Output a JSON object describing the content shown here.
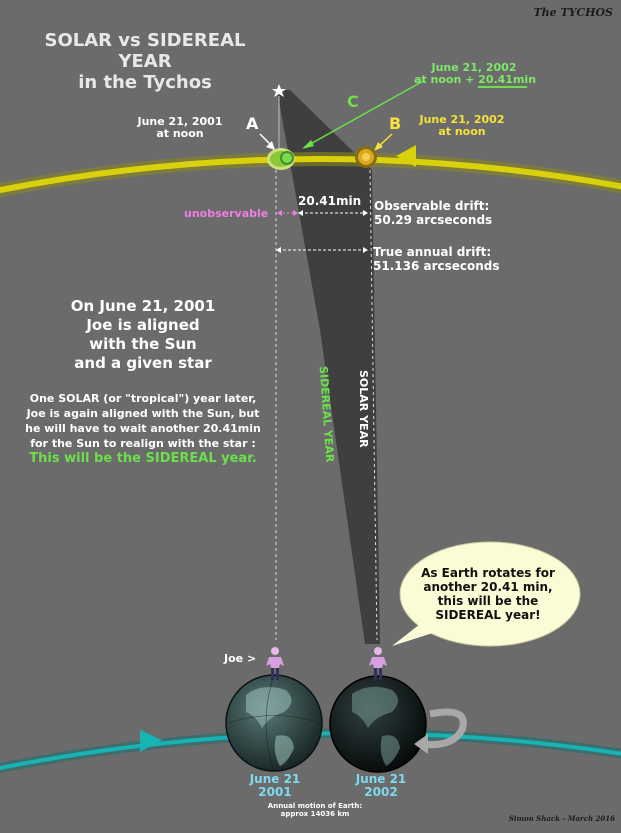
{
  "title": {
    "line1": "SOLAR vs SIDEREAL",
    "line2": "YEAR",
    "line3": "in the Tychos"
  },
  "brand": "The TYCHOS",
  "points": {
    "a": {
      "letter": "A",
      "date": "June 21, 2001",
      "time": "at noon"
    },
    "b": {
      "letter": "B",
      "date": "June 21, 2002",
      "time": "at noon"
    },
    "c": {
      "letter": "C",
      "date": "June 21, 2002",
      "time": "at noon + 20.41min"
    }
  },
  "drift": {
    "gap_label": "20.41min",
    "unobservable": "unobservable",
    "observable_line1": "Observable drift:",
    "observable_line2": "50.29 arcseconds",
    "true_line1": "True annual drift:",
    "true_line2": "51.136 arcseconds"
  },
  "story": {
    "line1": "On June 21, 2001",
    "line2": "Joe is aligned",
    "line3": "with the Sun",
    "line4": "and a given star",
    "p1": "One SOLAR (or \"tropical\") year later,",
    "p2": "Joe is again aligned with the Sun, but",
    "p3": "he will have to wait another 20.41min",
    "p4": "for the Sun to realign with the star :",
    "conclusion": "This will be the SIDEREAL year."
  },
  "beam_labels": {
    "sidereal": "SIDEREAL YEAR",
    "solar": "SOLAR YEAR"
  },
  "bubble": {
    "line1": "As Earth rotates for",
    "line2": "another 20.41 min,",
    "line3": "this will be the",
    "line4": "SIDEREAL year!"
  },
  "joe_label": "Joe >",
  "earths": {
    "left": {
      "year_line1": "June 21",
      "year_line2": "2001"
    },
    "right": {
      "year_line1": "June 21",
      "year_line2": "2002"
    }
  },
  "footer": {
    "line1": "Annual motion of Earth:",
    "line2": "approx 14036 km"
  },
  "credit": "Simon Shack - March 2016",
  "colors": {
    "background": "#6b6b6b",
    "sun_orbit": "#d9d10a",
    "earth_orbit": "#18b3b3",
    "label_yellow": "#f5e23a",
    "label_green": "#7fe86a",
    "label_pink": "#f07ee8",
    "year_blue": "#7fd8ee"
  },
  "icons": [
    "star-icon",
    "sun-icon",
    "arrow-left-icon",
    "arrow-right-icon",
    "rotation-arrow-icon",
    "person-icon",
    "globe-icon"
  ]
}
